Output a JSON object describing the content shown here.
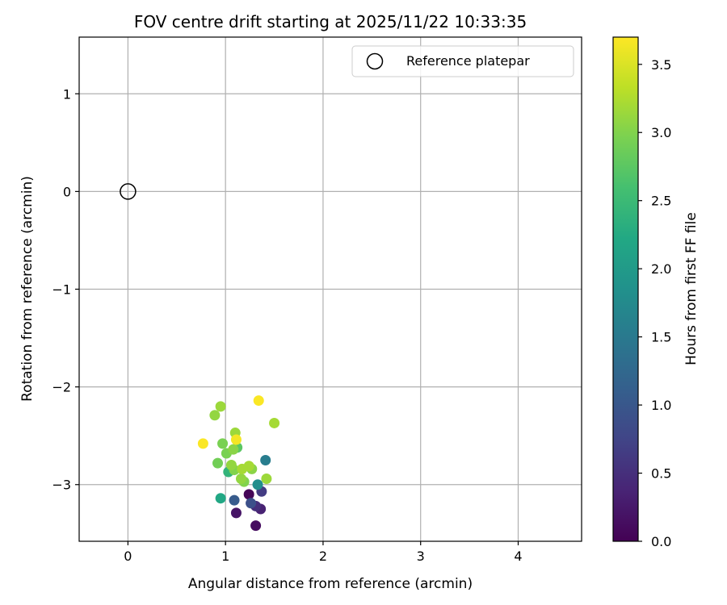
{
  "chart_data": {
    "type": "scatter",
    "title": "FOV centre drift starting at 2025/11/22 10:33:35",
    "xlabel": "Angular distance from reference (arcmin)",
    "ylabel": "Rotation from reference (arcmin)",
    "xlim": [
      -0.5,
      4.65
    ],
    "ylim": [
      -3.58,
      1.58
    ],
    "grid": true,
    "xticks": [
      0,
      1,
      2,
      3,
      4
    ],
    "yticks": [
      -3,
      -2,
      -1,
      0,
      1
    ],
    "xtick_labels": [
      "0",
      "1",
      "2",
      "3",
      "4"
    ],
    "ytick_labels": [
      "−3",
      "−2",
      "−1",
      "0",
      "1"
    ],
    "legend": {
      "location": "top-right",
      "entries": [
        "Reference platepar"
      ]
    },
    "reference_point": {
      "x": 0,
      "y": 0,
      "label": "Reference platepar"
    },
    "colorbar": {
      "label": "Hours from first FF file",
      "range": [
        0.0,
        3.7
      ],
      "ticks": [
        0.0,
        0.5,
        1.0,
        1.5,
        2.0,
        2.5,
        3.0,
        3.5
      ],
      "tick_labels": [
        "0.0",
        "0.5",
        "1.0",
        "1.5",
        "2.0",
        "2.5",
        "3.0",
        "3.5"
      ],
      "colormap": "viridis"
    },
    "points": [
      {
        "x": 1.24,
        "y": -3.1,
        "hours": 0.05
      },
      {
        "x": 1.31,
        "y": -3.42,
        "hours": 0.12
      },
      {
        "x": 1.11,
        "y": -3.29,
        "hours": 0.2
      },
      {
        "x": 1.36,
        "y": -3.25,
        "hours": 0.35
      },
      {
        "x": 1.31,
        "y": -3.22,
        "hours": 0.5
      },
      {
        "x": 1.37,
        "y": -3.07,
        "hours": 0.65
      },
      {
        "x": 1.26,
        "y": -3.19,
        "hours": 0.9
      },
      {
        "x": 1.09,
        "y": -3.16,
        "hours": 1.05
      },
      {
        "x": 1.41,
        "y": -2.75,
        "hours": 1.55
      },
      {
        "x": 1.33,
        "y": -3.0,
        "hours": 1.8
      },
      {
        "x": 0.95,
        "y": -3.14,
        "hours": 2.2
      },
      {
        "x": 1.03,
        "y": -2.87,
        "hours": 2.4
      },
      {
        "x": 1.12,
        "y": -2.62,
        "hours": 2.75
      },
      {
        "x": 0.92,
        "y": -2.78,
        "hours": 2.9
      },
      {
        "x": 1.01,
        "y": -2.68,
        "hours": 2.95
      },
      {
        "x": 0.97,
        "y": -2.58,
        "hours": 2.95
      },
      {
        "x": 1.09,
        "y": -2.85,
        "hours": 3.0
      },
      {
        "x": 1.19,
        "y": -2.97,
        "hours": 3.0
      },
      {
        "x": 1.27,
        "y": -2.84,
        "hours": 3.05
      },
      {
        "x": 1.08,
        "y": -2.64,
        "hours": 3.05
      },
      {
        "x": 1.06,
        "y": -2.8,
        "hours": 3.1
      },
      {
        "x": 1.16,
        "y": -2.94,
        "hours": 3.1
      },
      {
        "x": 0.89,
        "y": -2.29,
        "hours": 3.1
      },
      {
        "x": 0.95,
        "y": -2.2,
        "hours": 3.15
      },
      {
        "x": 1.1,
        "y": -2.47,
        "hours": 3.15
      },
      {
        "x": 1.42,
        "y": -2.94,
        "hours": 3.15
      },
      {
        "x": 1.5,
        "y": -2.37,
        "hours": 3.2
      },
      {
        "x": 1.24,
        "y": -2.81,
        "hours": 3.2
      },
      {
        "x": 1.17,
        "y": -2.84,
        "hours": 3.2
      },
      {
        "x": 1.11,
        "y": -2.54,
        "hours": 3.65
      },
      {
        "x": 0.77,
        "y": -2.58,
        "hours": 3.68
      },
      {
        "x": 1.34,
        "y": -2.14,
        "hours": 3.68
      }
    ]
  }
}
